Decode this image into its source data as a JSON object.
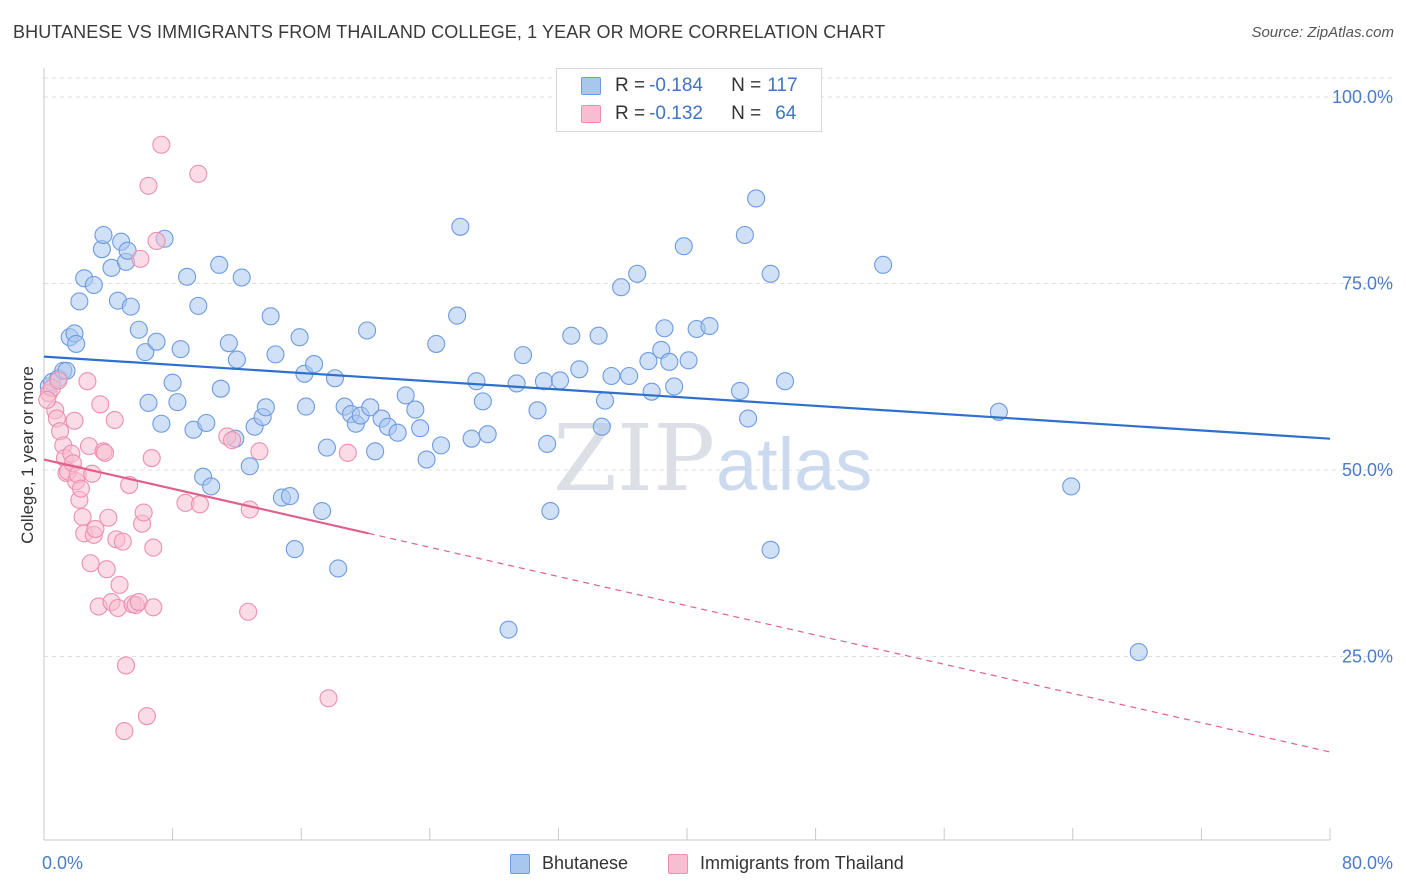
{
  "title": "BHUTANESE VS IMMIGRANTS FROM THAILAND COLLEGE, 1 YEAR OR MORE CORRELATION CHART",
  "source": "Source: ZipAtlas.com",
  "watermark": {
    "zip": "ZIP",
    "atlas": "atlas"
  },
  "legend_top": [
    {
      "r_label": "R = ",
      "r_value": "-0.184",
      "n_label": "N = ",
      "n_value": "117",
      "color": "#a9c6ef",
      "stroke": "#6d9be0"
    },
    {
      "r_label": "R = ",
      "r_value": "-0.132",
      "n_label": "N = ",
      "n_value": "64",
      "color": "#f7bdd0",
      "stroke": "#ec8fb0"
    }
  ],
  "legend_bottom": [
    {
      "label": "Bhutanese",
      "color": "#a9c6ef",
      "stroke": "#6d9be0"
    },
    {
      "label": "Immigrants from Thailand",
      "color": "#f7bdd0",
      "stroke": "#ec8fb0"
    }
  ],
  "chart_data": {
    "type": "scatter",
    "title": "BHUTANESE VS IMMIGRANTS FROM THAILAND COLLEGE, 1 YEAR OR MORE CORRELATION CHART",
    "xlabel": "",
    "ylabel": "College, 1 year or more",
    "xlim": [
      0,
      80
    ],
    "ylim": [
      0,
      105
    ],
    "x_tick_labels": [
      {
        "value": 0,
        "label": "0.0%"
      },
      {
        "value": 80,
        "label": "80.0%"
      }
    ],
    "y_tick_labels": [
      {
        "value": 25,
        "label": "25.0%"
      },
      {
        "value": 50,
        "label": "50.0%"
      },
      {
        "value": 75,
        "label": "75.0%"
      },
      {
        "value": 100,
        "label": "100.0%"
      }
    ],
    "grid": true,
    "series": [
      {
        "name": "Bhutanese",
        "color": "#a9c6ef",
        "stroke": "#6d9be0",
        "line_color": "#2f6fcd",
        "trend": {
          "x0": 0,
          "y0": 65.2,
          "x1": 80,
          "y1": 54.2
        },
        "points": [
          [
            0.3,
            61.2
          ],
          [
            0.5,
            61.8
          ],
          [
            0.9,
            62.3
          ],
          [
            1.2,
            63.3
          ],
          [
            1.4,
            63.3
          ],
          [
            1.6,
            67.8
          ],
          [
            1.9,
            68.3
          ],
          [
            2.2,
            72.6
          ],
          [
            2.5,
            75.7
          ],
          [
            3.1,
            74.8
          ],
          [
            3.6,
            79.6
          ],
          [
            3.7,
            81.5
          ],
          [
            4.2,
            77.1
          ],
          [
            4.6,
            72.7
          ],
          [
            4.8,
            80.6
          ],
          [
            5.1,
            77.9
          ],
          [
            5.2,
            79.4
          ],
          [
            5.4,
            71.9
          ],
          [
            5.9,
            68.8
          ],
          [
            6.3,
            65.8
          ],
          [
            6.5,
            59.0
          ],
          [
            7.0,
            67.2
          ],
          [
            7.3,
            56.2
          ],
          [
            7.5,
            81.0
          ],
          [
            8.0,
            61.7
          ],
          [
            8.3,
            59.1
          ],
          [
            8.5,
            66.2
          ],
          [
            8.9,
            75.9
          ],
          [
            9.3,
            55.4
          ],
          [
            9.6,
            72.0
          ],
          [
            9.9,
            49.1
          ],
          [
            10.1,
            56.3
          ],
          [
            10.4,
            47.8
          ],
          [
            10.9,
            77.5
          ],
          [
            11.0,
            60.9
          ],
          [
            11.5,
            67.0
          ],
          [
            11.9,
            54.2
          ],
          [
            12.3,
            75.8
          ],
          [
            12.8,
            50.5
          ],
          [
            13.1,
            55.8
          ],
          [
            13.6,
            57.1
          ],
          [
            13.8,
            58.4
          ],
          [
            14.1,
            70.6
          ],
          [
            14.4,
            65.5
          ],
          [
            14.8,
            46.3
          ],
          [
            15.3,
            46.5
          ],
          [
            15.6,
            39.4
          ],
          [
            15.9,
            67.8
          ],
          [
            16.2,
            62.9
          ],
          [
            16.3,
            58.5
          ],
          [
            16.8,
            64.2
          ],
          [
            17.3,
            44.5
          ],
          [
            17.6,
            53.0
          ],
          [
            18.1,
            62.3
          ],
          [
            18.3,
            36.8
          ],
          [
            18.7,
            58.5
          ],
          [
            19.1,
            57.5
          ],
          [
            19.4,
            56.2
          ],
          [
            19.7,
            57.3
          ],
          [
            20.1,
            68.7
          ],
          [
            20.3,
            58.4
          ],
          [
            20.6,
            52.5
          ],
          [
            21.0,
            56.9
          ],
          [
            21.4,
            55.8
          ],
          [
            22.0,
            55.0
          ],
          [
            22.5,
            60.0
          ],
          [
            23.1,
            58.1
          ],
          [
            23.4,
            55.6
          ],
          [
            23.8,
            51.4
          ],
          [
            24.4,
            66.9
          ],
          [
            24.7,
            53.3
          ],
          [
            25.7,
            70.7
          ],
          [
            25.9,
            82.6
          ],
          [
            26.6,
            54.2
          ],
          [
            26.9,
            61.9
          ],
          [
            27.3,
            59.2
          ],
          [
            27.6,
            54.8
          ],
          [
            28.9,
            28.6
          ],
          [
            29.4,
            61.6
          ],
          [
            29.8,
            65.4
          ],
          [
            30.7,
            58.0
          ],
          [
            31.1,
            61.9
          ],
          [
            31.3,
            53.5
          ],
          [
            31.5,
            44.5
          ],
          [
            32.1,
            62.0
          ],
          [
            32.8,
            68.0
          ],
          [
            33.3,
            63.5
          ],
          [
            34.5,
            68.0
          ],
          [
            34.7,
            55.8
          ],
          [
            34.9,
            59.3
          ],
          [
            35.3,
            62.6
          ],
          [
            35.9,
            74.5
          ],
          [
            36.4,
            62.6
          ],
          [
            36.9,
            76.3
          ],
          [
            37.6,
            64.6
          ],
          [
            37.8,
            60.5
          ],
          [
            38.4,
            66.1
          ],
          [
            38.6,
            69.0
          ],
          [
            38.9,
            64.5
          ],
          [
            39.2,
            61.2
          ],
          [
            39.8,
            80.0
          ],
          [
            40.1,
            64.7
          ],
          [
            40.6,
            68.9
          ],
          [
            41.4,
            69.3
          ],
          [
            43.3,
            60.6
          ],
          [
            43.6,
            81.5
          ],
          [
            43.8,
            56.9
          ],
          [
            44.3,
            86.4
          ],
          [
            45.2,
            76.3
          ],
          [
            45.2,
            39.3
          ],
          [
            46.1,
            61.9
          ],
          [
            52.2,
            77.5
          ],
          [
            59.4,
            57.8
          ],
          [
            63.9,
            47.8
          ],
          [
            68.1,
            25.6
          ],
          [
            2.0,
            66.9
          ],
          [
            12.0,
            64.8
          ]
        ]
      },
      {
        "name": "Immigrants from Thailand",
        "color": "#f7bdd0",
        "stroke": "#ec8fb0",
        "line_color": "#e0608c",
        "trend": {
          "x0": 0,
          "y0": 51.4,
          "x1": 80,
          "y1": 12.2
        },
        "trend_solid_until_x": 20.2,
        "points": [
          [
            0.3,
            60.3
          ],
          [
            0.5,
            61.0
          ],
          [
            0.7,
            58.0
          ],
          [
            0.8,
            56.9
          ],
          [
            0.9,
            62.0
          ],
          [
            1.0,
            55.2
          ],
          [
            1.2,
            53.3
          ],
          [
            1.3,
            51.6
          ],
          [
            1.4,
            49.6
          ],
          [
            1.5,
            49.8
          ],
          [
            1.7,
            52.2
          ],
          [
            1.8,
            50.9
          ],
          [
            1.9,
            56.6
          ],
          [
            2.0,
            48.5
          ],
          [
            2.1,
            49.4
          ],
          [
            2.2,
            46.0
          ],
          [
            2.3,
            47.5
          ],
          [
            2.4,
            43.7
          ],
          [
            2.5,
            41.5
          ],
          [
            2.7,
            61.9
          ],
          [
            2.8,
            53.2
          ],
          [
            2.9,
            37.5
          ],
          [
            3.0,
            49.5
          ],
          [
            3.1,
            41.3
          ],
          [
            3.2,
            42.1
          ],
          [
            3.4,
            31.7
          ],
          [
            3.5,
            58.8
          ],
          [
            3.7,
            52.5
          ],
          [
            3.8,
            52.3
          ],
          [
            3.9,
            36.7
          ],
          [
            4.0,
            43.6
          ],
          [
            4.2,
            32.3
          ],
          [
            4.4,
            56.7
          ],
          [
            4.5,
            40.7
          ],
          [
            4.6,
            31.5
          ],
          [
            4.7,
            34.6
          ],
          [
            4.9,
            40.4
          ],
          [
            5.0,
            15.0
          ],
          [
            5.1,
            23.8
          ],
          [
            5.3,
            48.0
          ],
          [
            5.5,
            32.0
          ],
          [
            5.7,
            31.9
          ],
          [
            5.9,
            32.3
          ],
          [
            6.0,
            78.3
          ],
          [
            6.1,
            42.8
          ],
          [
            6.2,
            44.3
          ],
          [
            6.4,
            17.0
          ],
          [
            6.5,
            88.1
          ],
          [
            6.7,
            51.6
          ],
          [
            6.8,
            31.6
          ],
          [
            6.8,
            39.6
          ],
          [
            7.0,
            80.7
          ],
          [
            7.3,
            93.6
          ],
          [
            8.8,
            45.6
          ],
          [
            9.6,
            89.7
          ],
          [
            9.7,
            45.4
          ],
          [
            11.4,
            54.5
          ],
          [
            11.7,
            54.0
          ],
          [
            12.7,
            31.0
          ],
          [
            12.8,
            44.7
          ],
          [
            13.4,
            52.5
          ],
          [
            17.7,
            19.4
          ],
          [
            18.9,
            52.3
          ],
          [
            0.2,
            59.4
          ]
        ]
      }
    ]
  }
}
